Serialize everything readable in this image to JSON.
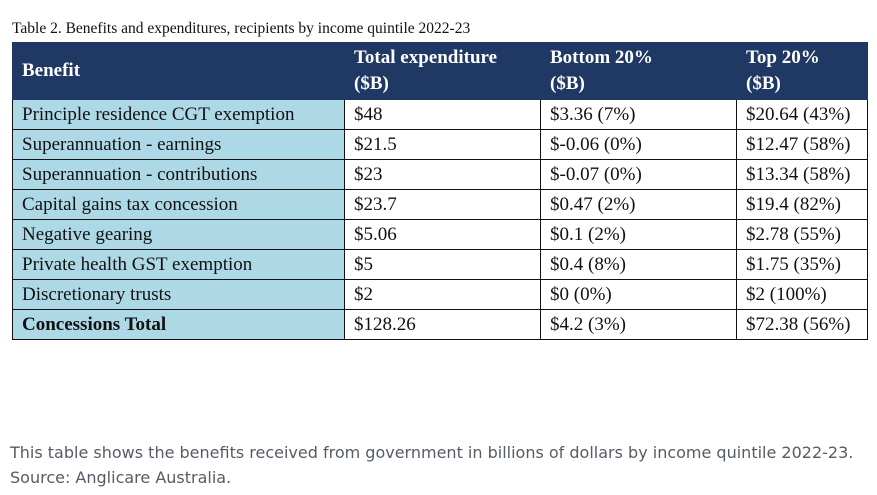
{
  "table": {
    "title": "Table 2. Benefits and expenditures, recipients by income quintile 2022-23",
    "headers": [
      {
        "line1": "Benefit",
        "line2": ""
      },
      {
        "line1": "Total expenditure",
        "line2": "($B)"
      },
      {
        "line1": "Bottom 20%",
        "line2": "($B)"
      },
      {
        "line1": "Top 20%",
        "line2": "($B)"
      }
    ],
    "rows": [
      {
        "benefit": "Principle residence CGT exemption",
        "total": "$48",
        "bottom": "$3.36 (7%)",
        "top": "$20.64 (43%)"
      },
      {
        "benefit": "Superannuation - earnings",
        "total": "$21.5",
        "bottom": "$-0.06 (0%)",
        "top": "$12.47 (58%)"
      },
      {
        "benefit": "Superannuation - contributions",
        "total": "$23",
        "bottom": "$-0.07 (0%)",
        "top": "$13.34 (58%)"
      },
      {
        "benefit": "Capital gains tax concession",
        "total": "$23.7",
        "bottom": "$0.47 (2%)",
        "top": "$19.4 (82%)"
      },
      {
        "benefit": "Negative gearing",
        "total": "$5.06",
        "bottom": "$0.1 (2%)",
        "top": "$2.78 (55%)"
      },
      {
        "benefit": "Private health GST exemption",
        "total": "$5",
        "bottom": "$0.4 (8%)",
        "top": "$1.75 (35%)"
      },
      {
        "benefit": "Discretionary trusts",
        "total": "$2",
        "bottom": "$0 (0%)",
        "top": "$2 (100%)"
      }
    ],
    "total_row": {
      "benefit": "Concessions Total",
      "total": "$128.26",
      "bottom": "$4.2 (3%)",
      "top": "$72.38 (56%)"
    }
  },
  "caption": "This table shows the benefits received from government in billions of dollars by income quintile 2022-23. Source: Anglicare Australia.",
  "colors": {
    "header_bg": "#1f3864",
    "benefit_cell_bg": "#add8e6",
    "caption_text": "#555c66"
  }
}
